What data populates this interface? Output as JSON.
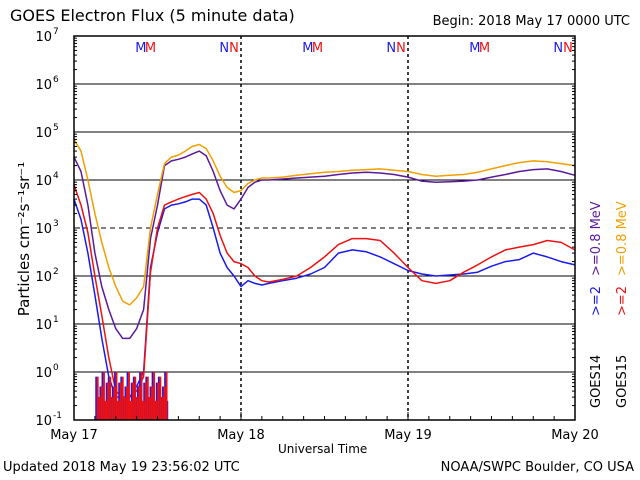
{
  "header": {
    "title": "GOES Electron Flux (5 minute data)",
    "begin": "Begin: 2018 May 17 0000 UTC"
  },
  "footer": {
    "updated": "Updated 2018 May 19 23:56:02 UTC",
    "credit": "NOAA/SWPC Boulder, CO USA"
  },
  "colors": {
    "goes14_2mev": "#1a1aee",
    "goes15_2mev": "#ee1111",
    "goes14_08mev": "#5a1a9a",
    "goes15_08mev": "#f0a000"
  },
  "chart_data": {
    "type": "line",
    "title": "GOES Electron Flux (5 minute data)",
    "xlabel": "Universal Time",
    "ylabel": "Particles cm⁻²s⁻¹sr⁻¹",
    "yscale": "log",
    "ylim": [
      0.1,
      10000000
    ],
    "xlim": [
      0,
      72
    ],
    "x_unit": "hours since 2018 May 17 0000 UTC",
    "x_ticks": [
      {
        "x": 0,
        "label": "May 17"
      },
      {
        "x": 24,
        "label": "May 18"
      },
      {
        "x": 48,
        "label": "May 19"
      },
      {
        "x": 72,
        "label": "May 20"
      }
    ],
    "y_ticks": [
      {
        "exp": "-1"
      },
      {
        "exp": "0"
      },
      {
        "exp": "1"
      },
      {
        "exp": "2"
      },
      {
        "exp": "3"
      },
      {
        "exp": "4"
      },
      {
        "exp": "5"
      },
      {
        "exp": "6"
      },
      {
        "exp": "7"
      }
    ],
    "gridlines_y": [
      1,
      10,
      100,
      10000,
      100000,
      1000000
    ],
    "threshold_line": 1000,
    "day_dividers": [
      24,
      48
    ],
    "mn_markers": [
      {
        "x": 9.6,
        "label": "M",
        "color": "#1a1aee"
      },
      {
        "x": 11.0,
        "label": "M",
        "color": "#ee1111"
      },
      {
        "x": 21.6,
        "label": "N",
        "color": "#1a1aee"
      },
      {
        "x": 23.0,
        "label": "N",
        "color": "#ee1111"
      },
      {
        "x": 33.6,
        "label": "M",
        "color": "#1a1aee"
      },
      {
        "x": 35.0,
        "label": "M",
        "color": "#ee1111"
      },
      {
        "x": 45.6,
        "label": "N",
        "color": "#1a1aee"
      },
      {
        "x": 47.0,
        "label": "N",
        "color": "#ee1111"
      },
      {
        "x": 57.6,
        "label": "M",
        "color": "#1a1aee"
      },
      {
        "x": 59.0,
        "label": "M",
        "color": "#ee1111"
      },
      {
        "x": 69.6,
        "label": "N",
        "color": "#1a1aee"
      },
      {
        "x": 71.0,
        "label": "N",
        "color": "#ee1111"
      }
    ],
    "legend_groups": [
      {
        "goes": "GOES14",
        "items": [
          {
            "text": ">=2",
            "color": "#1a1aee"
          },
          {
            "text": ">=0.8 MeV",
            "color": "#5a1a9a"
          }
        ]
      },
      {
        "goes": "GOES15",
        "items": [
          {
            "text": ">=2",
            "color": "#ee1111"
          },
          {
            "text": ">=0.8 MeV",
            "color": "#f0a000"
          }
        ]
      }
    ],
    "series": [
      {
        "name": "GOES14 >=0.8 MeV",
        "color": "#5a1a9a",
        "x": [
          0,
          1,
          2,
          3,
          4,
          5,
          6,
          7,
          8,
          9,
          10,
          11,
          12,
          13,
          14,
          15,
          16,
          17,
          18,
          19,
          20,
          21,
          22,
          23,
          24,
          25,
          26,
          27,
          28,
          30,
          32,
          34,
          36,
          38,
          40,
          42,
          44,
          46,
          48,
          50,
          52,
          54,
          56,
          58,
          60,
          62,
          64,
          66,
          68,
          70,
          72
        ],
        "y": [
          30000,
          15000,
          3000,
          300,
          60,
          20,
          8,
          5,
          5,
          8,
          20,
          600,
          3000,
          20000,
          25000,
          27000,
          30000,
          35000,
          40000,
          32000,
          15000,
          6000,
          3000,
          2500,
          4000,
          7000,
          9000,
          10000,
          10000,
          10500,
          11000,
          11500,
          12000,
          13000,
          14000,
          14500,
          14000,
          13000,
          11500,
          9500,
          9000,
          9200,
          9500,
          10000,
          11500,
          13000,
          15000,
          16500,
          17000,
          15000,
          12500
        ]
      },
      {
        "name": "GOES15 >=0.8 MeV",
        "color": "#f0a000",
        "x": [
          0,
          1,
          2,
          3,
          4,
          5,
          6,
          7,
          8,
          9,
          10,
          11,
          12,
          13,
          14,
          15,
          16,
          17,
          18,
          19,
          20,
          21,
          22,
          23,
          24,
          25,
          26,
          27,
          28,
          30,
          32,
          34,
          36,
          38,
          40,
          42,
          44,
          46,
          48,
          50,
          52,
          54,
          56,
          58,
          60,
          62,
          64,
          66,
          68,
          70,
          72
        ],
        "y": [
          70000,
          40000,
          10000,
          2000,
          500,
          150,
          60,
          30,
          25,
          35,
          60,
          1000,
          5000,
          22000,
          30000,
          33000,
          40000,
          50000,
          55000,
          45000,
          25000,
          12000,
          7000,
          5500,
          6000,
          8500,
          10000,
          11000,
          11000,
          11500,
          12500,
          13500,
          14500,
          15000,
          16000,
          16500,
          17000,
          16000,
          15000,
          13000,
          12000,
          12500,
          13000,
          14500,
          17000,
          20000,
          23000,
          25000,
          24000,
          22000,
          20000
        ]
      },
      {
        "name": "GOES14 >=2 MeV",
        "color": "#1a1aee",
        "x": [
          0,
          1,
          2,
          3,
          4,
          5,
          6,
          7,
          8,
          9,
          10,
          11,
          12,
          13,
          14,
          15,
          16,
          17,
          18,
          19,
          20,
          21,
          22,
          23,
          24,
          25,
          26,
          27,
          28,
          30,
          32,
          34,
          36,
          38,
          40,
          42,
          44,
          46,
          48,
          50,
          52,
          54,
          56,
          58,
          60,
          62,
          64,
          66,
          68,
          70,
          72
        ],
        "y": [
          4000,
          1500,
          300,
          40,
          5,
          0.8,
          0.3,
          0.3,
          0.3,
          0.5,
          1,
          150,
          800,
          2500,
          3000,
          3200,
          3500,
          4000,
          4000,
          3000,
          1000,
          300,
          150,
          100,
          60,
          80,
          70,
          65,
          70,
          80,
          90,
          110,
          150,
          300,
          350,
          320,
          250,
          180,
          130,
          110,
          100,
          105,
          110,
          120,
          160,
          200,
          220,
          300,
          250,
          200,
          170
        ]
      },
      {
        "name": "GOES15 >=2 MeV",
        "color": "#ee1111",
        "x": [
          0,
          1,
          2,
          3,
          4,
          5,
          6,
          7,
          8,
          9,
          10,
          11,
          12,
          13,
          14,
          15,
          16,
          17,
          18,
          19,
          20,
          21,
          22,
          23,
          24,
          25,
          26,
          27,
          28,
          30,
          32,
          34,
          36,
          38,
          40,
          42,
          44,
          46,
          48,
          50,
          52,
          54,
          56,
          58,
          60,
          62,
          64,
          66,
          68,
          70,
          72
        ],
        "y": [
          8000,
          3000,
          800,
          100,
          15,
          2,
          0.4,
          0.3,
          0.3,
          0.4,
          0.8,
          120,
          1000,
          3000,
          3500,
          4000,
          4500,
          5000,
          5500,
          4000,
          2000,
          700,
          300,
          200,
          180,
          150,
          100,
          80,
          75,
          85,
          100,
          150,
          250,
          450,
          600,
          600,
          550,
          300,
          150,
          80,
          70,
          80,
          120,
          170,
          250,
          350,
          400,
          450,
          550,
          500,
          350
        ]
      }
    ],
    "drops": {
      "goes14_2mev": [
        3.2,
        3.5,
        3.8,
        4.1,
        4.4,
        4.7,
        5.0,
        5.3,
        5.6,
        5.9,
        6.2,
        6.5,
        6.8,
        7.1,
        7.4,
        7.7,
        8.0,
        8.3,
        8.6,
        8.9,
        9.2,
        9.5,
        9.8,
        10.1,
        10.4,
        10.7,
        11.0,
        11.3,
        11.6,
        11.9,
        12.2,
        12.5,
        12.8,
        13.1,
        13.4
      ],
      "goes15_2mev": [
        3.4,
        3.7,
        4.0,
        4.3,
        4.6,
        4.9,
        5.2,
        5.5,
        5.8,
        6.1,
        6.4,
        6.7,
        7.0,
        7.3,
        7.6,
        7.9,
        8.2,
        8.5,
        8.8,
        9.1,
        9.4,
        9.7,
        10.0,
        10.3,
        10.6,
        10.9,
        11.2,
        11.5,
        11.8,
        12.1,
        12.4,
        12.7,
        13.0,
        13.3
      ]
    }
  }
}
